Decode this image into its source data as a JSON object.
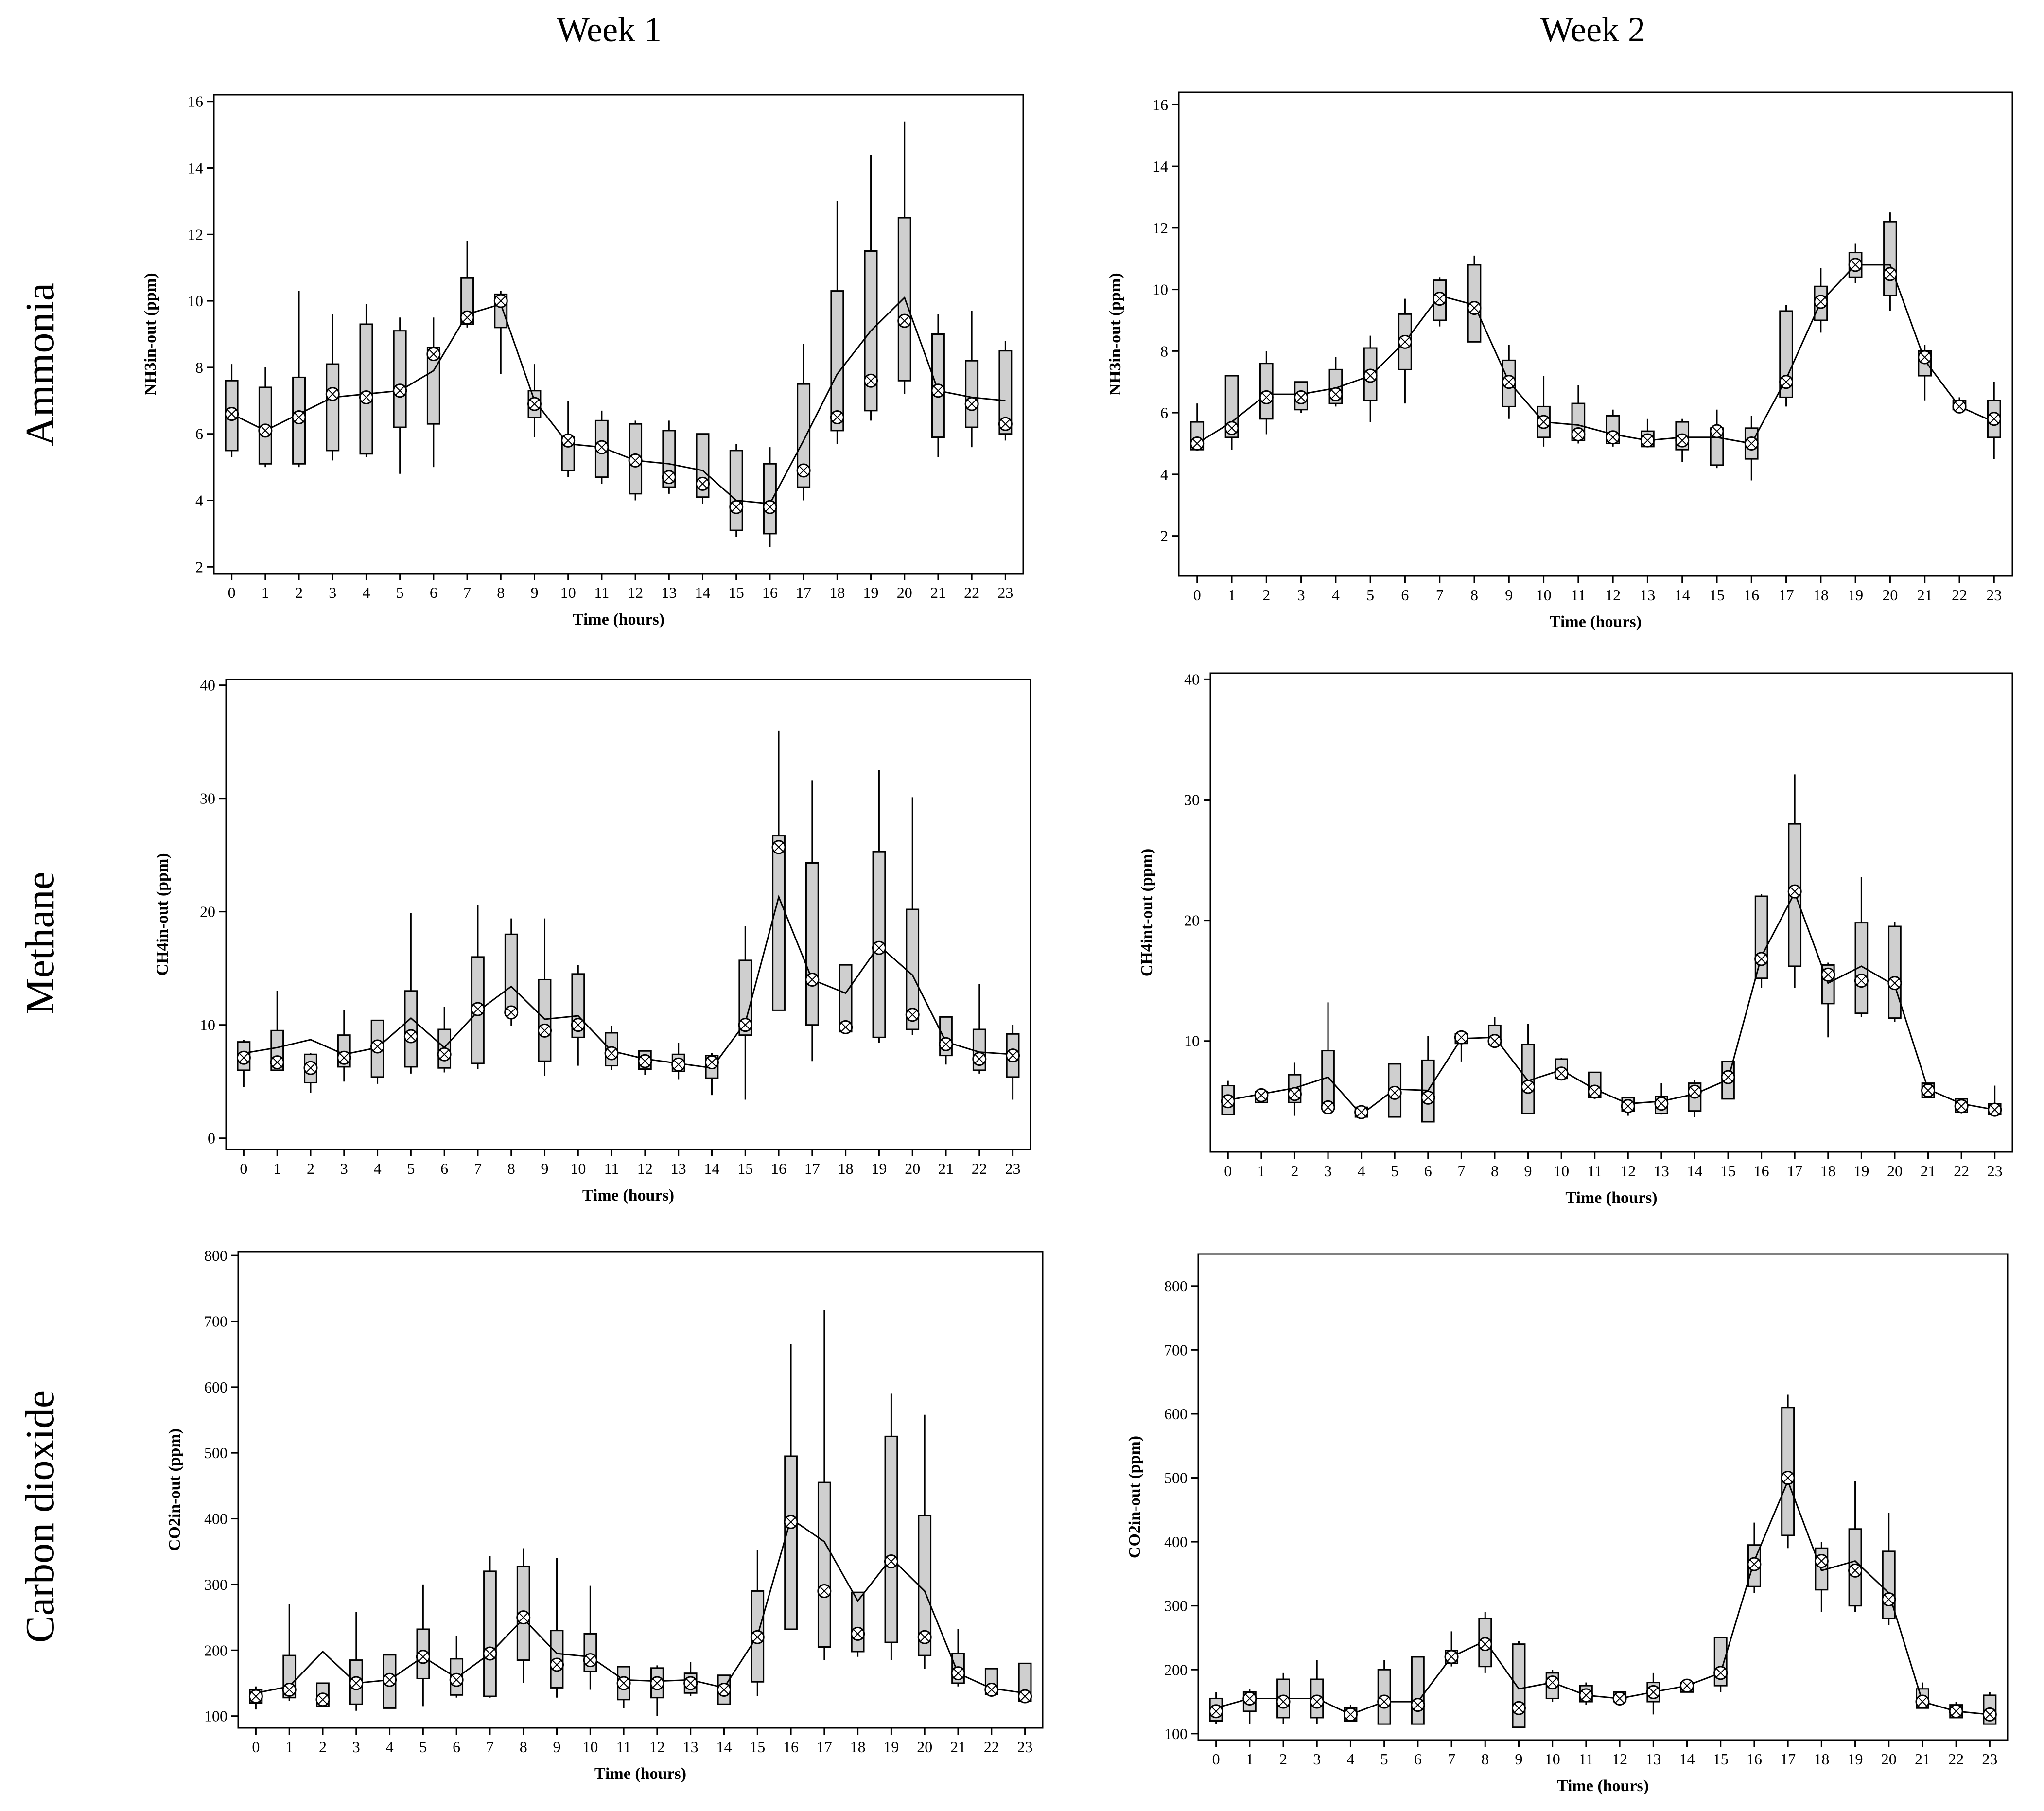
{
  "column_titles": [
    "Week 1",
    "Week 2"
  ],
  "row_titles": [
    "Ammonia",
    "Methane",
    "Carbon dioxide"
  ],
  "colors": {
    "box_fill": "#cfcfcf",
    "stroke": "#000000",
    "background": "#ffffff"
  },
  "chart_data": [
    {
      "type": "box",
      "panel": "ammonia-week1",
      "xlabel": "Time (hours)",
      "ylabel": "NH3in-out (ppm)",
      "ylim": [
        1.8,
        16.2
      ],
      "yticks": [
        2,
        4,
        6,
        8,
        10,
        12,
        14,
        16
      ],
      "x": [
        0,
        1,
        2,
        3,
        4,
        5,
        6,
        7,
        8,
        9,
        10,
        11,
        12,
        13,
        14,
        15,
        16,
        17,
        18,
        19,
        20,
        21,
        22,
        23
      ],
      "q1": [
        5.5,
        5.1,
        5.1,
        5.5,
        5.4,
        6.2,
        6.3,
        9.3,
        9.2,
        6.5,
        4.9,
        4.7,
        4.2,
        4.4,
        4.1,
        3.1,
        3.0,
        4.4,
        6.1,
        6.7,
        7.6,
        5.9,
        6.2,
        6.0
      ],
      "q3": [
        7.6,
        7.4,
        7.7,
        8.1,
        9.3,
        9.1,
        8.6,
        10.7,
        10.2,
        7.3,
        5.9,
        6.4,
        6.3,
        6.1,
        6.0,
        5.5,
        5.1,
        7.5,
        10.3,
        11.5,
        12.5,
        9.0,
        8.2,
        8.5
      ],
      "wlow": [
        5.3,
        5.0,
        5.0,
        5.2,
        5.3,
        4.8,
        5.0,
        9.2,
        7.8,
        5.9,
        4.7,
        4.5,
        4.0,
        4.2,
        3.9,
        2.9,
        2.6,
        4.0,
        5.7,
        6.4,
        7.2,
        5.3,
        5.6,
        5.8
      ],
      "whigh": [
        8.1,
        8.0,
        10.3,
        9.6,
        9.9,
        9.5,
        9.5,
        11.8,
        10.3,
        8.1,
        7.0,
        6.7,
        6.4,
        6.4,
        6.0,
        5.7,
        5.6,
        8.7,
        13.0,
        14.4,
        15.4,
        9.6,
        9.7,
        8.8
      ],
      "median": [
        6.6,
        6.1,
        6.5,
        7.2,
        7.1,
        7.3,
        8.4,
        9.5,
        10.0,
        6.9,
        5.8,
        5.6,
        5.2,
        4.7,
        4.5,
        3.8,
        3.8,
        4.9,
        6.5,
        7.6,
        9.4,
        7.3,
        6.9,
        6.3
      ],
      "mean": [
        6.6,
        6.1,
        6.6,
        7.1,
        7.2,
        7.3,
        7.9,
        9.6,
        9.9,
        7.0,
        5.7,
        5.6,
        5.2,
        5.1,
        4.9,
        4.0,
        3.9,
        5.8,
        7.8,
        9.1,
        10.1,
        7.3,
        7.1,
        7.0
      ]
    },
    {
      "type": "box",
      "panel": "ammonia-week2",
      "xlabel": "Time (hours)",
      "ylabel": "NH3in-out (ppm)",
      "ylim": [
        0.7,
        16.4
      ],
      "yticks": [
        2,
        4,
        6,
        8,
        10,
        12,
        14,
        16
      ],
      "x": [
        0,
        1,
        2,
        3,
        4,
        5,
        6,
        7,
        8,
        9,
        10,
        11,
        12,
        13,
        14,
        15,
        16,
        17,
        18,
        19,
        20,
        21,
        22,
        23
      ],
      "q1": [
        4.8,
        5.2,
        5.8,
        6.1,
        6.3,
        6.4,
        7.4,
        9.0,
        8.3,
        6.2,
        5.2,
        5.1,
        5.0,
        4.9,
        4.8,
        4.3,
        4.5,
        6.5,
        9.0,
        10.4,
        9.8,
        7.2,
        6.1,
        5.2
      ],
      "q3": [
        5.7,
        7.2,
        7.6,
        7.0,
        7.4,
        8.1,
        9.2,
        10.3,
        10.8,
        7.7,
        6.2,
        6.3,
        5.9,
        5.4,
        5.7,
        5.5,
        5.5,
        9.3,
        10.1,
        11.2,
        12.2,
        8.0,
        6.4,
        6.4
      ],
      "wlow": [
        4.8,
        4.8,
        5.3,
        6.0,
        6.2,
        5.7,
        6.3,
        8.8,
        8.3,
        5.8,
        4.9,
        5.0,
        4.9,
        4.9,
        4.4,
        4.2,
        3.8,
        6.2,
        8.6,
        10.2,
        9.3,
        6.4,
        6.1,
        4.5
      ],
      "whigh": [
        6.3,
        7.2,
        8.0,
        7.0,
        7.8,
        8.5,
        9.7,
        10.4,
        11.1,
        8.2,
        7.2,
        6.9,
        6.1,
        5.8,
        5.8,
        6.1,
        5.9,
        9.5,
        10.7,
        11.5,
        12.5,
        8.2,
        6.5,
        7.0
      ],
      "median": [
        5.0,
        5.5,
        6.5,
        6.5,
        6.6,
        7.2,
        8.3,
        9.7,
        9.4,
        7.0,
        5.7,
        5.3,
        5.2,
        5.1,
        5.1,
        5.4,
        5.0,
        7.0,
        9.6,
        10.8,
        10.5,
        7.8,
        6.2,
        5.8
      ],
      "mean": [
        5.0,
        5.7,
        6.6,
        6.6,
        6.8,
        7.2,
        8.3,
        9.8,
        9.5,
        7.0,
        5.7,
        5.6,
        5.3,
        5.1,
        5.2,
        5.2,
        5.0,
        7.1,
        9.6,
        10.8,
        10.8,
        7.7,
        6.2,
        5.7
      ]
    },
    {
      "type": "box",
      "panel": "methane-week1",
      "xlabel": "Time (hours)",
      "ylabel": "CH4in-out (ppm)",
      "ylim": [
        -1,
        40.5
      ],
      "yticks": [
        0,
        10,
        20,
        30,
        40
      ],
      "x": [
        0,
        1,
        2,
        3,
        4,
        5,
        6,
        7,
        8,
        9,
        10,
        11,
        12,
        13,
        14,
        15,
        16,
        17,
        18,
        19,
        20,
        21,
        22,
        23
      ],
      "q1": [
        6.0,
        6.0,
        4.9,
        6.3,
        5.4,
        6.3,
        6.2,
        6.6,
        11.0,
        6.8,
        8.9,
        6.4,
        6.1,
        5.9,
        5.3,
        9.1,
        11.3,
        10.0,
        9.4,
        8.9,
        9.6,
        7.3,
        6.0,
        5.4
      ],
      "q3": [
        8.5,
        9.5,
        7.4,
        9.1,
        10.4,
        13.0,
        9.6,
        16.0,
        18.0,
        14.0,
        14.5,
        9.3,
        7.7,
        7.4,
        7.3,
        15.7,
        26.7,
        24.3,
        15.3,
        25.3,
        20.2,
        10.7,
        9.6,
        9.2
      ],
      "wlow": [
        4.5,
        6.0,
        4.0,
        5.0,
        4.8,
        5.7,
        5.8,
        6.1,
        9.9,
        5.5,
        6.4,
        6.0,
        5.6,
        5.2,
        3.8,
        3.4,
        11.3,
        6.8,
        9.3,
        8.4,
        9.1,
        6.5,
        5.7,
        3.4
      ],
      "whigh": [
        8.7,
        13.0,
        7.5,
        11.3,
        10.4,
        19.9,
        11.6,
        20.6,
        19.4,
        19.4,
        15.3,
        9.9,
        7.7,
        8.4,
        7.5,
        18.7,
        36.0,
        31.6,
        15.3,
        32.5,
        30.1,
        10.7,
        13.6,
        10.0
      ],
      "median": [
        7.1,
        6.7,
        6.2,
        7.1,
        8.1,
        9.0,
        7.4,
        11.4,
        11.1,
        9.5,
        10.0,
        7.5,
        6.8,
        6.5,
        6.7,
        10.0,
        25.7,
        14.0,
        9.8,
        16.8,
        10.9,
        8.3,
        7.0,
        7.3
      ],
      "mean": [
        7.5,
        8.0,
        8.7,
        7.4,
        8.0,
        10.6,
        8.0,
        11.2,
        13.4,
        10.5,
        10.8,
        7.7,
        7.0,
        6.6,
        6.2,
        10.2,
        21.3,
        14.0,
        12.8,
        17.0,
        14.4,
        8.5,
        7.6,
        7.4
      ]
    },
    {
      "type": "box",
      "panel": "methane-week2",
      "xlabel": "Time (hours)",
      "ylabel": "CH4int-out (ppm)",
      "ylim": [
        0.8,
        40.5
      ],
      "yticks": [
        10,
        20,
        30,
        40
      ],
      "x": [
        0,
        1,
        2,
        3,
        4,
        5,
        6,
        7,
        8,
        9,
        10,
        11,
        12,
        13,
        14,
        15,
        16,
        17,
        18,
        19,
        20,
        21,
        22,
        23
      ],
      "q1": [
        3.9,
        4.9,
        4.9,
        4.6,
        3.7,
        3.7,
        3.3,
        9.8,
        9.7,
        4.0,
        6.9,
        5.3,
        4.2,
        4.0,
        4.2,
        5.2,
        15.2,
        16.2,
        13.1,
        12.3,
        11.9,
        5.3,
        4.1,
        3.9
      ],
      "q3": [
        6.3,
        5.8,
        7.2,
        9.2,
        4.5,
        8.1,
        8.4,
        10.6,
        11.3,
        9.7,
        8.5,
        7.4,
        5.3,
        5.4,
        6.5,
        8.3,
        22.0,
        28.0,
        16.3,
        19.8,
        19.5,
        6.5,
        5.2,
        4.8
      ],
      "wlow": [
        3.9,
        4.9,
        3.8,
        4.6,
        3.7,
        3.7,
        3.3,
        8.3,
        9.6,
        4.0,
        6.8,
        5.2,
        3.8,
        3.9,
        3.7,
        5.2,
        14.4,
        14.4,
        10.3,
        12.0,
        11.6,
        5.3,
        4.0,
        3.8
      ],
      "whigh": [
        6.7,
        6.1,
        8.2,
        13.2,
        4.6,
        8.1,
        10.4,
        10.7,
        12.0,
        11.4,
        8.6,
        7.4,
        5.3,
        6.5,
        6.8,
        8.3,
        22.2,
        32.1,
        16.5,
        23.6,
        19.9,
        6.5,
        5.2,
        6.3
      ],
      "median": [
        5.0,
        5.5,
        5.6,
        4.5,
        4.1,
        5.7,
        5.3,
        10.3,
        10.0,
        6.2,
        7.3,
        5.8,
        4.6,
        4.8,
        5.8,
        7.0,
        16.8,
        22.4,
        15.5,
        15.0,
        14.8,
        5.9,
        4.6,
        4.3
      ],
      "mean": [
        5.1,
        5.6,
        6.1,
        7.0,
        3.9,
        6.0,
        5.9,
        10.2,
        10.3,
        6.7,
        7.6,
        6.0,
        4.8,
        5.0,
        5.6,
        6.8,
        17.0,
        22.3,
        14.8,
        16.2,
        14.6,
        6.0,
        4.8,
        4.3
      ]
    },
    {
      "type": "box",
      "panel": "co2-week1",
      "xlabel": "Time (hours)",
      "ylabel": "CO2in-out (ppm)",
      "ylim": [
        82,
        806
      ],
      "yticks": [
        100,
        200,
        300,
        400,
        500,
        600,
        700,
        800
      ],
      "x": [
        0,
        1,
        2,
        3,
        4,
        5,
        6,
        7,
        8,
        9,
        10,
        11,
        12,
        13,
        14,
        15,
        16,
        17,
        18,
        19,
        20,
        21,
        22,
        23
      ],
      "q1": [
        120,
        128,
        115,
        118,
        112,
        157,
        132,
        130,
        185,
        143,
        168,
        125,
        128,
        135,
        118,
        152,
        232,
        205,
        198,
        212,
        192,
        150,
        133,
        123
      ],
      "q3": [
        140,
        192,
        150,
        185,
        193,
        232,
        187,
        320,
        327,
        230,
        225,
        175,
        173,
        165,
        162,
        290,
        495,
        455,
        288,
        525,
        405,
        195,
        172,
        180
      ],
      "wlow": [
        110,
        123,
        115,
        108,
        112,
        115,
        128,
        128,
        150,
        128,
        140,
        112,
        100,
        130,
        118,
        130,
        232,
        185,
        190,
        185,
        172,
        145,
        130,
        120
      ],
      "whigh": [
        145,
        270,
        150,
        258,
        193,
        300,
        222,
        343,
        355,
        340,
        298,
        175,
        177,
        182,
        162,
        353,
        665,
        717,
        288,
        590,
        558,
        232,
        172,
        180
      ],
      "median": [
        130,
        140,
        125,
        150,
        155,
        190,
        155,
        195,
        250,
        178,
        185,
        150,
        150,
        150,
        140,
        220,
        395,
        290,
        225,
        335,
        220,
        165,
        140,
        130
      ],
      "mean": [
        135,
        145,
        198,
        150,
        155,
        190,
        158,
        195,
        248,
        195,
        190,
        155,
        153,
        155,
        143,
        222,
        400,
        365,
        275,
        340,
        290,
        165,
        142,
        135
      ]
    },
    {
      "type": "box",
      "panel": "co2-week2",
      "xlabel": "Time (hours)",
      "ylabel": "CO2in-out (ppm)",
      "ylim": [
        90,
        850
      ],
      "yticks": [
        100,
        200,
        300,
        400,
        500,
        600,
        700,
        800
      ],
      "x": [
        0,
        1,
        2,
        3,
        4,
        5,
        6,
        7,
        8,
        9,
        10,
        11,
        12,
        13,
        14,
        15,
        16,
        17,
        18,
        19,
        20,
        21,
        22,
        23
      ],
      "q1": [
        120,
        135,
        125,
        125,
        120,
        115,
        115,
        210,
        205,
        110,
        155,
        150,
        150,
        150,
        165,
        175,
        330,
        410,
        325,
        300,
        280,
        140,
        125,
        115
      ],
      "q3": [
        155,
        165,
        185,
        185,
        140,
        200,
        220,
        230,
        280,
        240,
        195,
        175,
        165,
        180,
        180,
        250,
        395,
        610,
        390,
        420,
        385,
        170,
        145,
        160
      ],
      "wlow": [
        115,
        115,
        115,
        115,
        120,
        115,
        115,
        205,
        195,
        110,
        150,
        145,
        150,
        130,
        165,
        165,
        320,
        390,
        290,
        290,
        270,
        140,
        125,
        115
      ],
      "whigh": [
        165,
        170,
        195,
        215,
        145,
        215,
        220,
        260,
        290,
        245,
        200,
        180,
        165,
        195,
        180,
        250,
        430,
        630,
        400,
        495,
        445,
        180,
        150,
        165
      ],
      "median": [
        135,
        155,
        150,
        150,
        130,
        150,
        145,
        220,
        240,
        140,
        180,
        160,
        155,
        165,
        175,
        195,
        365,
        500,
        370,
        355,
        310,
        150,
        135,
        130
      ],
      "mean": [
        140,
        155,
        155,
        155,
        130,
        150,
        150,
        220,
        245,
        170,
        180,
        160,
        155,
        165,
        175,
        195,
        370,
        495,
        355,
        370,
        320,
        150,
        135,
        130
      ]
    }
  ]
}
